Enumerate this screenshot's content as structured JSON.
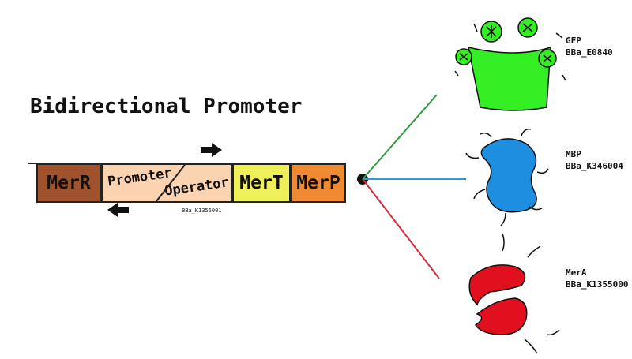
{
  "title": "Bidirectional Promoter",
  "construct": {
    "parts": {
      "merr": "MerR",
      "promoter": "Promoter",
      "operator": "Operator",
      "mert": "MerT",
      "merp": "MerP"
    },
    "part_id": "BBa_K1355001"
  },
  "proteins": [
    {
      "name": "GFP",
      "id": "BBa_E0840",
      "color": "#33ee22",
      "line_color": "#2e9a3e"
    },
    {
      "name": "MBP",
      "id": "BBa_K346004",
      "color": "#1e8fe0",
      "line_color": "#2a9fd6"
    },
    {
      "name": "MerA",
      "id": "BBa_K1355000",
      "color": "#e0101e",
      "line_color": "#d42a3a"
    }
  ]
}
